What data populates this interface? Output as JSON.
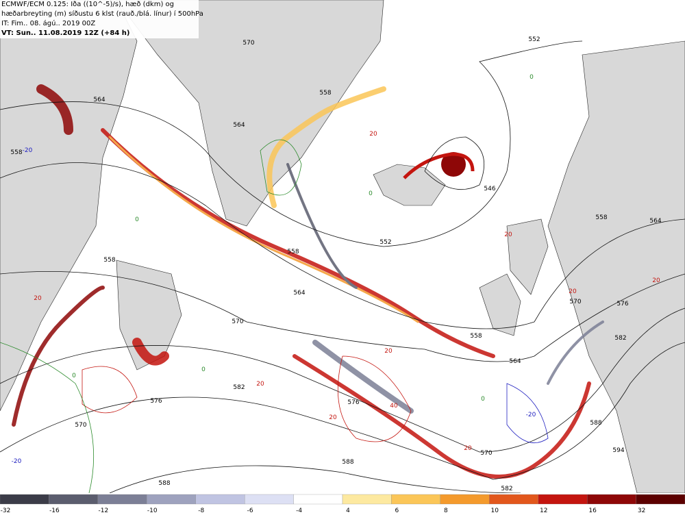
{
  "header": {
    "lines": [
      "ECMWF/ECM 0.125: Iða ((10^-5)/s), hæð (dkm) og",
      "hæðarbreyting (m) síðustu 6 klst (rauð./blá. línur) í 500hPa",
      "IT: Fim.. 08. ágú.. 2019 00Z",
      "VT: Sun.. 11.08.2019 12Z (+84 h)"
    ]
  },
  "map": {
    "contour_labels": [
      "552",
      "558",
      "564",
      "564",
      "558",
      "546",
      "552",
      "558",
      "564",
      "570",
      "576",
      "582",
      "576",
      "588",
      "588",
      "570",
      "558",
      "564",
      "570",
      "576",
      "582",
      "588",
      "594",
      "582",
      "570",
      "564",
      "558",
      "570",
      "558"
    ],
    "change_labels": [
      "20",
      "20",
      "20",
      "20",
      "40",
      "20",
      "20",
      "20",
      "20",
      "20",
      "-20",
      "-20",
      "-20",
      "0",
      "0",
      "0",
      "0",
      "0",
      "0"
    ]
  },
  "colorbar": {
    "labels": [
      "-32",
      "-16",
      "-12",
      "-10",
      "-8",
      "-6",
      "-4",
      "4",
      "6",
      "8",
      "10",
      "12",
      "16",
      "32"
    ],
    "colors": [
      "#3b3c48",
      "#5b5d6e",
      "#7c7f96",
      "#9ea2be",
      "#c0c4e2",
      "#dde0f4",
      "#ffffff",
      "#fde9a0",
      "#fbc658",
      "#f49a2c",
      "#e2571c",
      "#c4150f",
      "#8e0707",
      "#5c0000"
    ]
  }
}
